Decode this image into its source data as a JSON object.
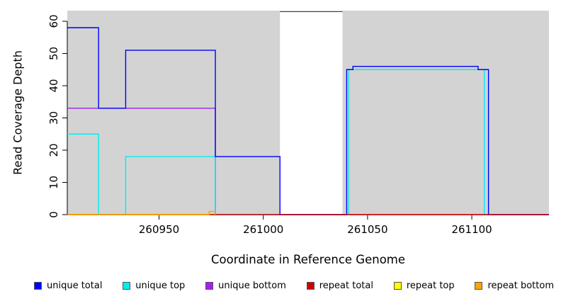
{
  "chart_data": {
    "type": "line",
    "title": "",
    "xlabel": "Coordinate in Reference Genome",
    "ylabel": "Read Coverage Depth",
    "xlim": [
      260906,
      261137
    ],
    "ylim": [
      0,
      63.3
    ],
    "grid": false,
    "xticks": [
      {
        "v": 260950,
        "label": "260950"
      },
      {
        "v": 261000,
        "label": "261000"
      },
      {
        "v": 261050,
        "label": "261050"
      },
      {
        "v": 261100,
        "label": "261100"
      }
    ],
    "yticks": [
      {
        "v": 0,
        "label": "0"
      },
      {
        "v": 10,
        "label": "10"
      },
      {
        "v": 20,
        "label": "20"
      },
      {
        "v": 30,
        "label": "30"
      },
      {
        "v": 40,
        "label": "40"
      },
      {
        "v": 50,
        "label": "50"
      },
      {
        "v": 60,
        "label": "60"
      }
    ],
    "background_regions": [
      {
        "x0": 260906,
        "x1": 261008,
        "color": "#D3D3D3"
      },
      {
        "x0": 261038,
        "x1": 261137,
        "color": "#D3D3D3"
      }
    ],
    "gap_top_line": {
      "x0": 261008,
      "x1": 261038,
      "y": 63,
      "color": "#404040"
    },
    "axis_color": "#000000",
    "series": [
      {
        "name": "repeat top",
        "color": "#FFFF00",
        "points": [
          [
            260906,
            0
          ],
          [
            261137,
            0
          ]
        ]
      },
      {
        "name": "unique bottom",
        "color": "#A020F0",
        "points": [
          [
            260906,
            33
          ],
          [
            260977,
            33
          ],
          [
            260977,
            0
          ],
          [
            261137,
            0
          ]
        ]
      },
      {
        "name": "unique top",
        "color": "#00EEEE",
        "points": [
          [
            260906,
            25
          ],
          [
            260921,
            25
          ],
          [
            260921,
            0
          ],
          [
            260934,
            0
          ],
          [
            260934,
            18
          ],
          [
            260977,
            18
          ],
          [
            260977,
            0
          ],
          [
            261041,
            0
          ],
          [
            261041,
            45
          ],
          [
            261106,
            45
          ],
          [
            261106,
            0
          ],
          [
            261137,
            0
          ]
        ]
      },
      {
        "name": "unique total",
        "color": "#0000FF",
        "points": [
          [
            260906,
            58
          ],
          [
            260921,
            58
          ],
          [
            260921,
            33
          ],
          [
            260934,
            33
          ],
          [
            260934,
            51
          ],
          [
            260977,
            51
          ],
          [
            260977,
            18
          ],
          [
            261008,
            18
          ],
          [
            261008,
            0
          ],
          [
            261040,
            0
          ],
          [
            261040,
            45
          ],
          [
            261043,
            45
          ],
          [
            261043,
            46
          ],
          [
            261103,
            46
          ],
          [
            261103,
            45
          ],
          [
            261108,
            45
          ],
          [
            261108,
            0
          ],
          [
            261137,
            0
          ]
        ]
      },
      {
        "name": "repeat total",
        "color": "#CC0000",
        "points": [
          [
            260906,
            0
          ],
          [
            261137,
            0
          ]
        ]
      },
      {
        "name": "repeat bottom",
        "color": "#FFA500",
        "points": [
          [
            260906,
            0
          ],
          [
            260974,
            0
          ],
          [
            260974,
            1
          ],
          [
            260977,
            1
          ],
          [
            260977,
            0
          ]
        ]
      }
    ],
    "legend": {
      "position": "bottom",
      "items": [
        {
          "label": "unique total",
          "color": "#0000FF"
        },
        {
          "label": "unique top",
          "color": "#00EEEE"
        },
        {
          "label": "unique bottom",
          "color": "#A020F0"
        },
        {
          "label": "repeat total",
          "color": "#CC0000"
        },
        {
          "label": "repeat top",
          "color": "#FFFF00"
        },
        {
          "label": "repeat bottom",
          "color": "#FFA500"
        }
      ]
    }
  }
}
